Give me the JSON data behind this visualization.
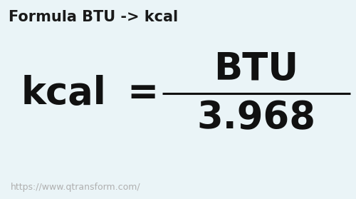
{
  "background_color": "#eaf4f7",
  "title_text": "Formula BTU -> kcal",
  "title_fontsize": 15,
  "title_color": "#1a1a1a",
  "title_fontweight": "bold",
  "numerator_text": "BTU",
  "numerator_fontsize": 38,
  "numerator_color": "#111111",
  "numerator_fontweight": "bold",
  "denominator_text": "3.968",
  "denominator_fontsize": 38,
  "denominator_color": "#111111",
  "denominator_fontweight": "bold",
  "kcal_text": "kcal",
  "kcal_fontsize": 38,
  "kcal_color": "#111111",
  "kcal_fontweight": "bold",
  "equals_text": "=",
  "equals_fontsize": 38,
  "equals_color": "#111111",
  "equals_fontweight": "bold",
  "line_color": "#111111",
  "line_lw": 2.2,
  "url_text": "https://www.qtransform.com/",
  "url_fontsize": 9,
  "url_color": "#b0b0b0",
  "fig_width": 5.0,
  "fig_height": 2.79,
  "dpi": 100
}
